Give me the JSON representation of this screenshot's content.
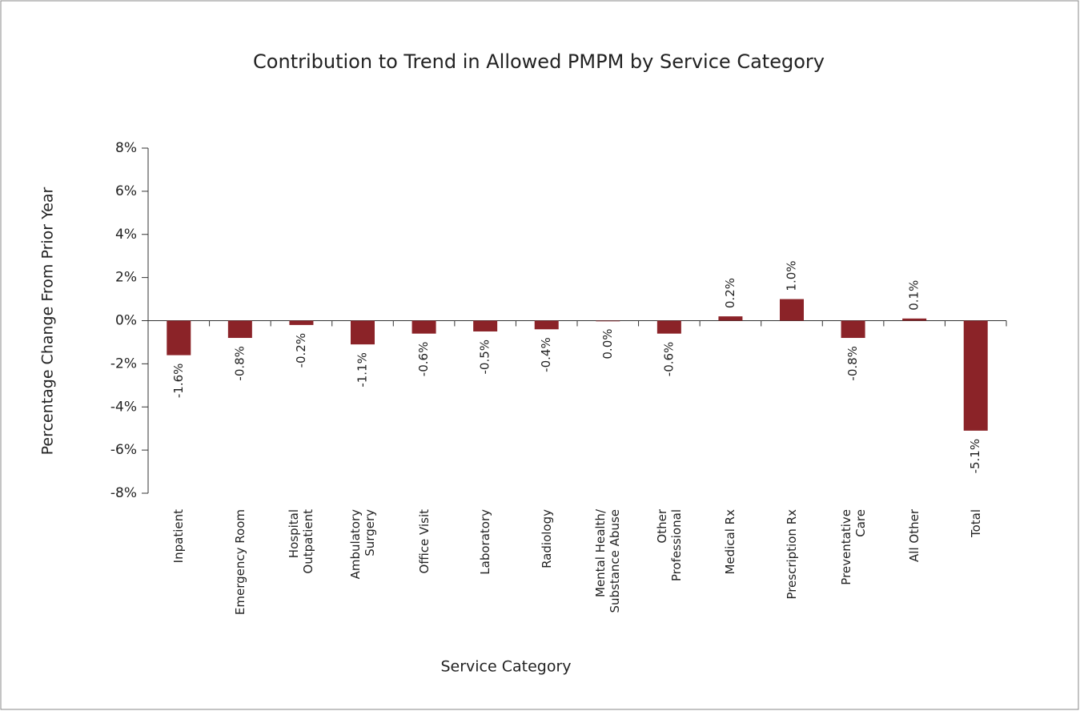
{
  "chart_data": {
    "type": "bar",
    "title": "Contribution to Trend in Allowed PMPM by Service Category",
    "x_label": "Service Category",
    "y_label": "Percentage Change From  Prior Year",
    "categories": [
      "Inpatient",
      "Emergency Room",
      "Hospital\nOutpatient",
      "Ambulatory\nSurgery",
      "Office Visit",
      "Laboratory",
      "Radiology",
      "Mental Health/\nSubstance Abuse",
      "Other\nProfessional",
      "Medical Rx",
      "Prescription Rx",
      "Preventative\nCare",
      "All Other",
      "Total"
    ],
    "values": [
      -1.6,
      -0.8,
      -0.2,
      -1.1,
      -0.6,
      -0.5,
      -0.4,
      0.0,
      -0.6,
      0.2,
      1.0,
      -0.8,
      0.1,
      -5.1
    ],
    "value_labels": [
      "-1.6%",
      "-0.8%",
      "-0.2%",
      "-1.1%",
      "-0.6%",
      "-0.5%",
      "-0.4%",
      "0.0%",
      "-0.6%",
      "0.2%",
      "1.0%",
      "-0.8%",
      "0.1%",
      "-5.1%"
    ],
    "color": "#8b2328",
    "ylim": [
      -8,
      8
    ],
    "yticks": [
      {
        "value": -8,
        "label": "-8%"
      },
      {
        "value": -6,
        "label": "-6%"
      },
      {
        "value": -4,
        "label": "-4%"
      },
      {
        "value": -2,
        "label": "-2%"
      },
      {
        "value": 0,
        "label": "0%"
      },
      {
        "value": 2,
        "label": "2%"
      },
      {
        "value": 4,
        "label": "4%"
      },
      {
        "value": 6,
        "label": "6%"
      },
      {
        "value": 8,
        "label": "8%"
      }
    ]
  }
}
